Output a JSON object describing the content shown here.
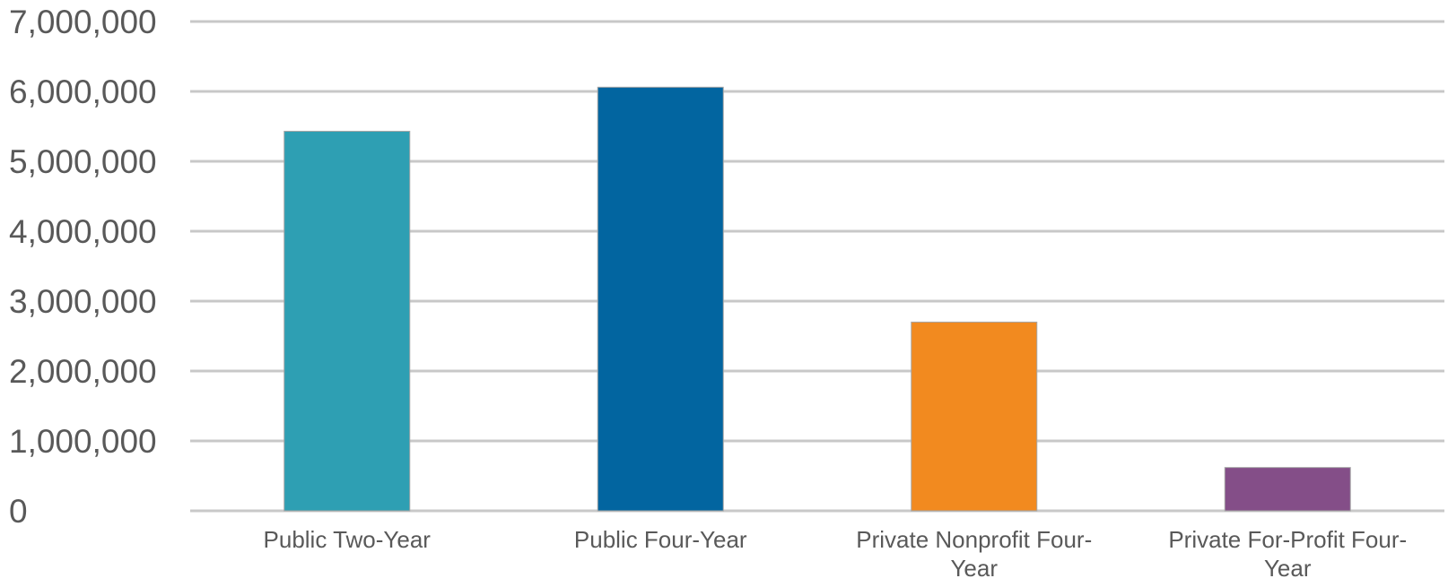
{
  "chart_data": {
    "type": "bar",
    "categories": [
      [
        "Public Two-Year"
      ],
      [
        "Public Four-Year"
      ],
      [
        "Private Nonprofit Four-",
        "Year"
      ],
      [
        "Private For-Profit Four-",
        "Year"
      ]
    ],
    "values": [
      5430000,
      6060000,
      2700000,
      620000
    ],
    "colors": [
      "#2e9fb3",
      "#0265a0",
      "#f28a1f",
      "#844e88"
    ],
    "ylim": [
      0,
      7000000
    ],
    "yticks": [
      "0",
      "1,000,000",
      "2,000,000",
      "3,000,000",
      "4,000,000",
      "5,000,000",
      "6,000,000",
      "7,000,000"
    ],
    "grid": true,
    "title": "",
    "xlabel": "",
    "ylabel": ""
  }
}
